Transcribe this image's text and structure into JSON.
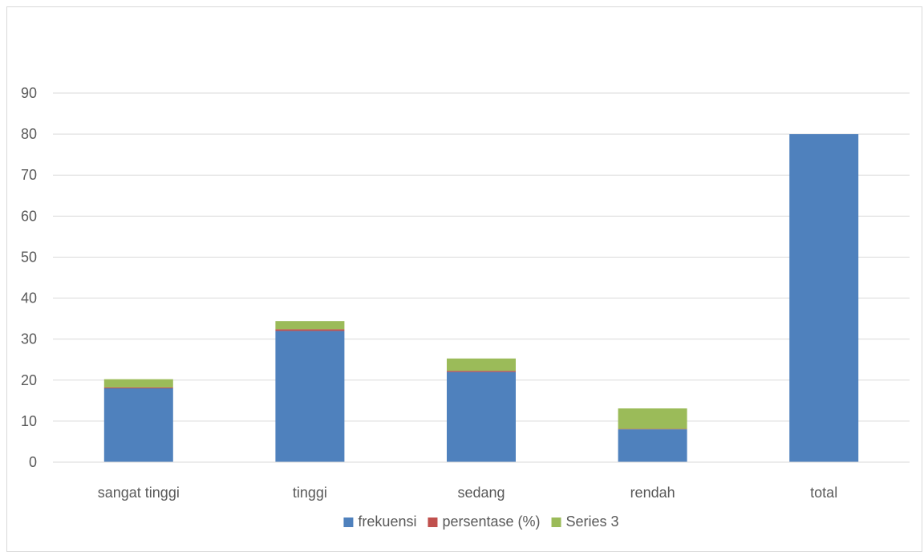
{
  "chart_data": {
    "type": "bar",
    "stacked": true,
    "title": "",
    "xlabel": "",
    "ylabel": "",
    "categories": [
      "sangat tinggi",
      "tinggi",
      "sedang",
      "rendah",
      "total"
    ],
    "series": [
      {
        "name": "frekuensi",
        "color": "#4f81bd",
        "values": [
          18,
          32,
          22,
          8,
          80
        ]
      },
      {
        "name": "persentase (%)",
        "color": "#c0504d",
        "values": [
          0.225,
          0.4,
          0.275,
          0.1,
          0
        ]
      },
      {
        "name": "Series 3",
        "color": "#9bbb59",
        "values": [
          2,
          2,
          3,
          5,
          0
        ]
      }
    ],
    "ylim": [
      0,
      90
    ],
    "yticks": [
      0,
      10,
      20,
      30,
      40,
      50,
      60,
      70,
      80,
      90
    ],
    "grid": true,
    "legend_position": "bottom"
  }
}
